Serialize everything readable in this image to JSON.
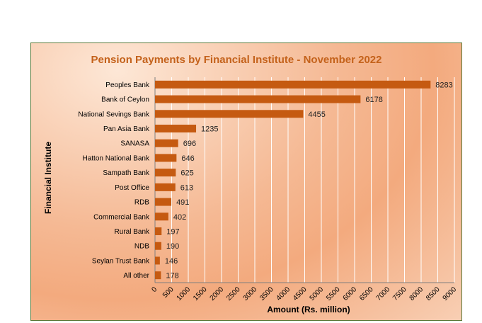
{
  "chart_data": {
    "type": "bar",
    "orientation": "horizontal",
    "title": "Pension Payments  by Financial  Institute  - November  2022",
    "xlabel": "Amount (Rs. million)",
    "ylabel": "Financial Institute",
    "xlim": [
      0,
      9000
    ],
    "xticks": [
      "0",
      "500",
      "1000",
      "1500",
      "2000",
      "2500",
      "3000",
      "3500",
      "4000",
      "4500",
      "5000",
      "5500",
      "6000",
      "6500",
      "7000",
      "7500",
      "8000",
      "8500",
      "9000"
    ],
    "categories": [
      "Peoples Bank",
      "Bank of Ceylon",
      "National Sevings Bank",
      "Pan Asia Bank",
      "SANASA",
      "Hatton National Bank",
      "Sampath Bank",
      "Post Office",
      "RDB",
      "Commercial Bank",
      "Rural Bank",
      "NDB",
      "Seylan Trust Bank",
      "All other"
    ],
    "values": [
      8283,
      6178,
      4455,
      1235,
      696,
      646,
      625,
      613,
      491,
      402,
      197,
      190,
      146,
      178
    ],
    "grid": "vertical",
    "bar_color": "#c55a11",
    "title_color": "#c4621b"
  }
}
